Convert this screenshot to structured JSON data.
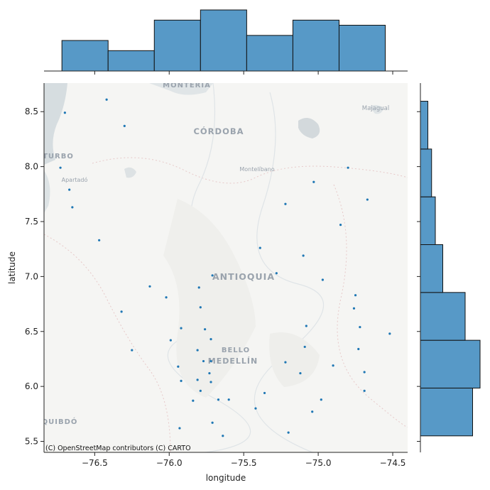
{
  "chart_data": {
    "type": "scatter",
    "title": "",
    "xlabel": "longitude",
    "ylabel": "latitude",
    "xlim": [
      -76.84,
      -74.4
    ],
    "ylim": [
      5.4,
      8.76
    ],
    "xticks": [
      -76.5,
      -76.0,
      -75.5,
      -75.0,
      -74.5
    ],
    "xtick_labels": [
      "−76.5",
      "−76.0",
      "−75.5",
      "−75.0",
      "−74.5"
    ],
    "yticks": [
      5.5,
      6.0,
      6.5,
      7.0,
      7.5,
      8.0,
      8.5
    ],
    "ytick_labels": [
      "5.5",
      "6.0",
      "6.5",
      "7.0",
      "7.5",
      "8.0",
      "8.5"
    ],
    "point_color": "#1f77b4",
    "hist_color": "#5799c7",
    "points": [
      {
        "x": -76.42,
        "y": 8.61
      },
      {
        "x": -76.7,
        "y": 8.49
      },
      {
        "x": -76.3,
        "y": 8.37
      },
      {
        "x": -76.73,
        "y": 7.99
      },
      {
        "x": -76.67,
        "y": 7.79
      },
      {
        "x": -76.65,
        "y": 7.63
      },
      {
        "x": -76.47,
        "y": 7.33
      },
      {
        "x": -75.22,
        "y": 7.66
      },
      {
        "x": -75.03,
        "y": 7.86
      },
      {
        "x": -74.8,
        "y": 7.99
      },
      {
        "x": -74.67,
        "y": 7.7
      },
      {
        "x": -74.85,
        "y": 7.47
      },
      {
        "x": -75.39,
        "y": 7.26
      },
      {
        "x": -75.1,
        "y": 7.19
      },
      {
        "x": -75.28,
        "y": 7.03
      },
      {
        "x": -74.97,
        "y": 6.97
      },
      {
        "x": -75.71,
        "y": 7.01
      },
      {
        "x": -76.13,
        "y": 6.91
      },
      {
        "x": -75.8,
        "y": 6.9
      },
      {
        "x": -76.02,
        "y": 6.81
      },
      {
        "x": -76.32,
        "y": 6.68
      },
      {
        "x": -75.79,
        "y": 6.72
      },
      {
        "x": -74.75,
        "y": 6.83
      },
      {
        "x": -74.76,
        "y": 6.71
      },
      {
        "x": -75.08,
        "y": 6.55
      },
      {
        "x": -74.72,
        "y": 6.54
      },
      {
        "x": -74.52,
        "y": 6.48
      },
      {
        "x": -75.92,
        "y": 6.53
      },
      {
        "x": -75.76,
        "y": 6.52
      },
      {
        "x": -75.99,
        "y": 6.42
      },
      {
        "x": -75.72,
        "y": 6.43
      },
      {
        "x": -76.25,
        "y": 6.33
      },
      {
        "x": -75.81,
        "y": 6.33
      },
      {
        "x": -75.09,
        "y": 6.36
      },
      {
        "x": -74.73,
        "y": 6.34
      },
      {
        "x": -75.77,
        "y": 6.23
      },
      {
        "x": -75.72,
        "y": 6.23
      },
      {
        "x": -75.22,
        "y": 6.22
      },
      {
        "x": -74.9,
        "y": 6.19
      },
      {
        "x": -75.94,
        "y": 6.18
      },
      {
        "x": -75.73,
        "y": 6.12
      },
      {
        "x": -75.12,
        "y": 6.12
      },
      {
        "x": -74.69,
        "y": 6.13
      },
      {
        "x": -75.92,
        "y": 6.05
      },
      {
        "x": -75.81,
        "y": 6.06
      },
      {
        "x": -75.72,
        "y": 6.04
      },
      {
        "x": -75.79,
        "y": 5.96
      },
      {
        "x": -75.36,
        "y": 5.94
      },
      {
        "x": -74.69,
        "y": 5.96
      },
      {
        "x": -75.84,
        "y": 5.87
      },
      {
        "x": -75.67,
        "y": 5.88
      },
      {
        "x": -75.6,
        "y": 5.88
      },
      {
        "x": -74.98,
        "y": 5.88
      },
      {
        "x": -75.42,
        "y": 5.8
      },
      {
        "x": -75.04,
        "y": 5.77
      },
      {
        "x": -75.71,
        "y": 5.67
      },
      {
        "x": -75.93,
        "y": 5.62
      },
      {
        "x": -75.2,
        "y": 5.58
      },
      {
        "x": -75.64,
        "y": 5.55
      }
    ],
    "x_histogram": {
      "bin_edges": [
        -76.72,
        -76.41,
        -76.1,
        -75.79,
        -75.48,
        -75.17,
        -74.86,
        -74.55
      ],
      "counts": [
        6,
        4,
        10,
        12,
        7,
        10,
        9
      ]
    },
    "y_histogram": {
      "bin_edges": [
        5.55,
        5.985,
        6.42,
        6.855,
        7.29,
        7.725,
        8.16,
        8.595
      ],
      "counts": [
        14,
        16,
        12,
        6,
        4,
        3,
        2
      ]
    }
  },
  "map": {
    "labels": {
      "monteria": "MONTERÍA",
      "cordoba": "CÓRDOBA",
      "majagual": "Majagual",
      "turbo": "TURBO",
      "apartado": "Apartadó",
      "montelibano": "Montelíbano",
      "antioquia": "ANTIOQUIA",
      "bello": "BELLO",
      "medellin": "MEDELLÍN",
      "quibdo": "QUIBDÓ"
    },
    "attribution": "(C) OpenStreetMap contributors (C) CARTO",
    "land_color": "#f4f4f2",
    "water_color": "#d2dadd"
  }
}
